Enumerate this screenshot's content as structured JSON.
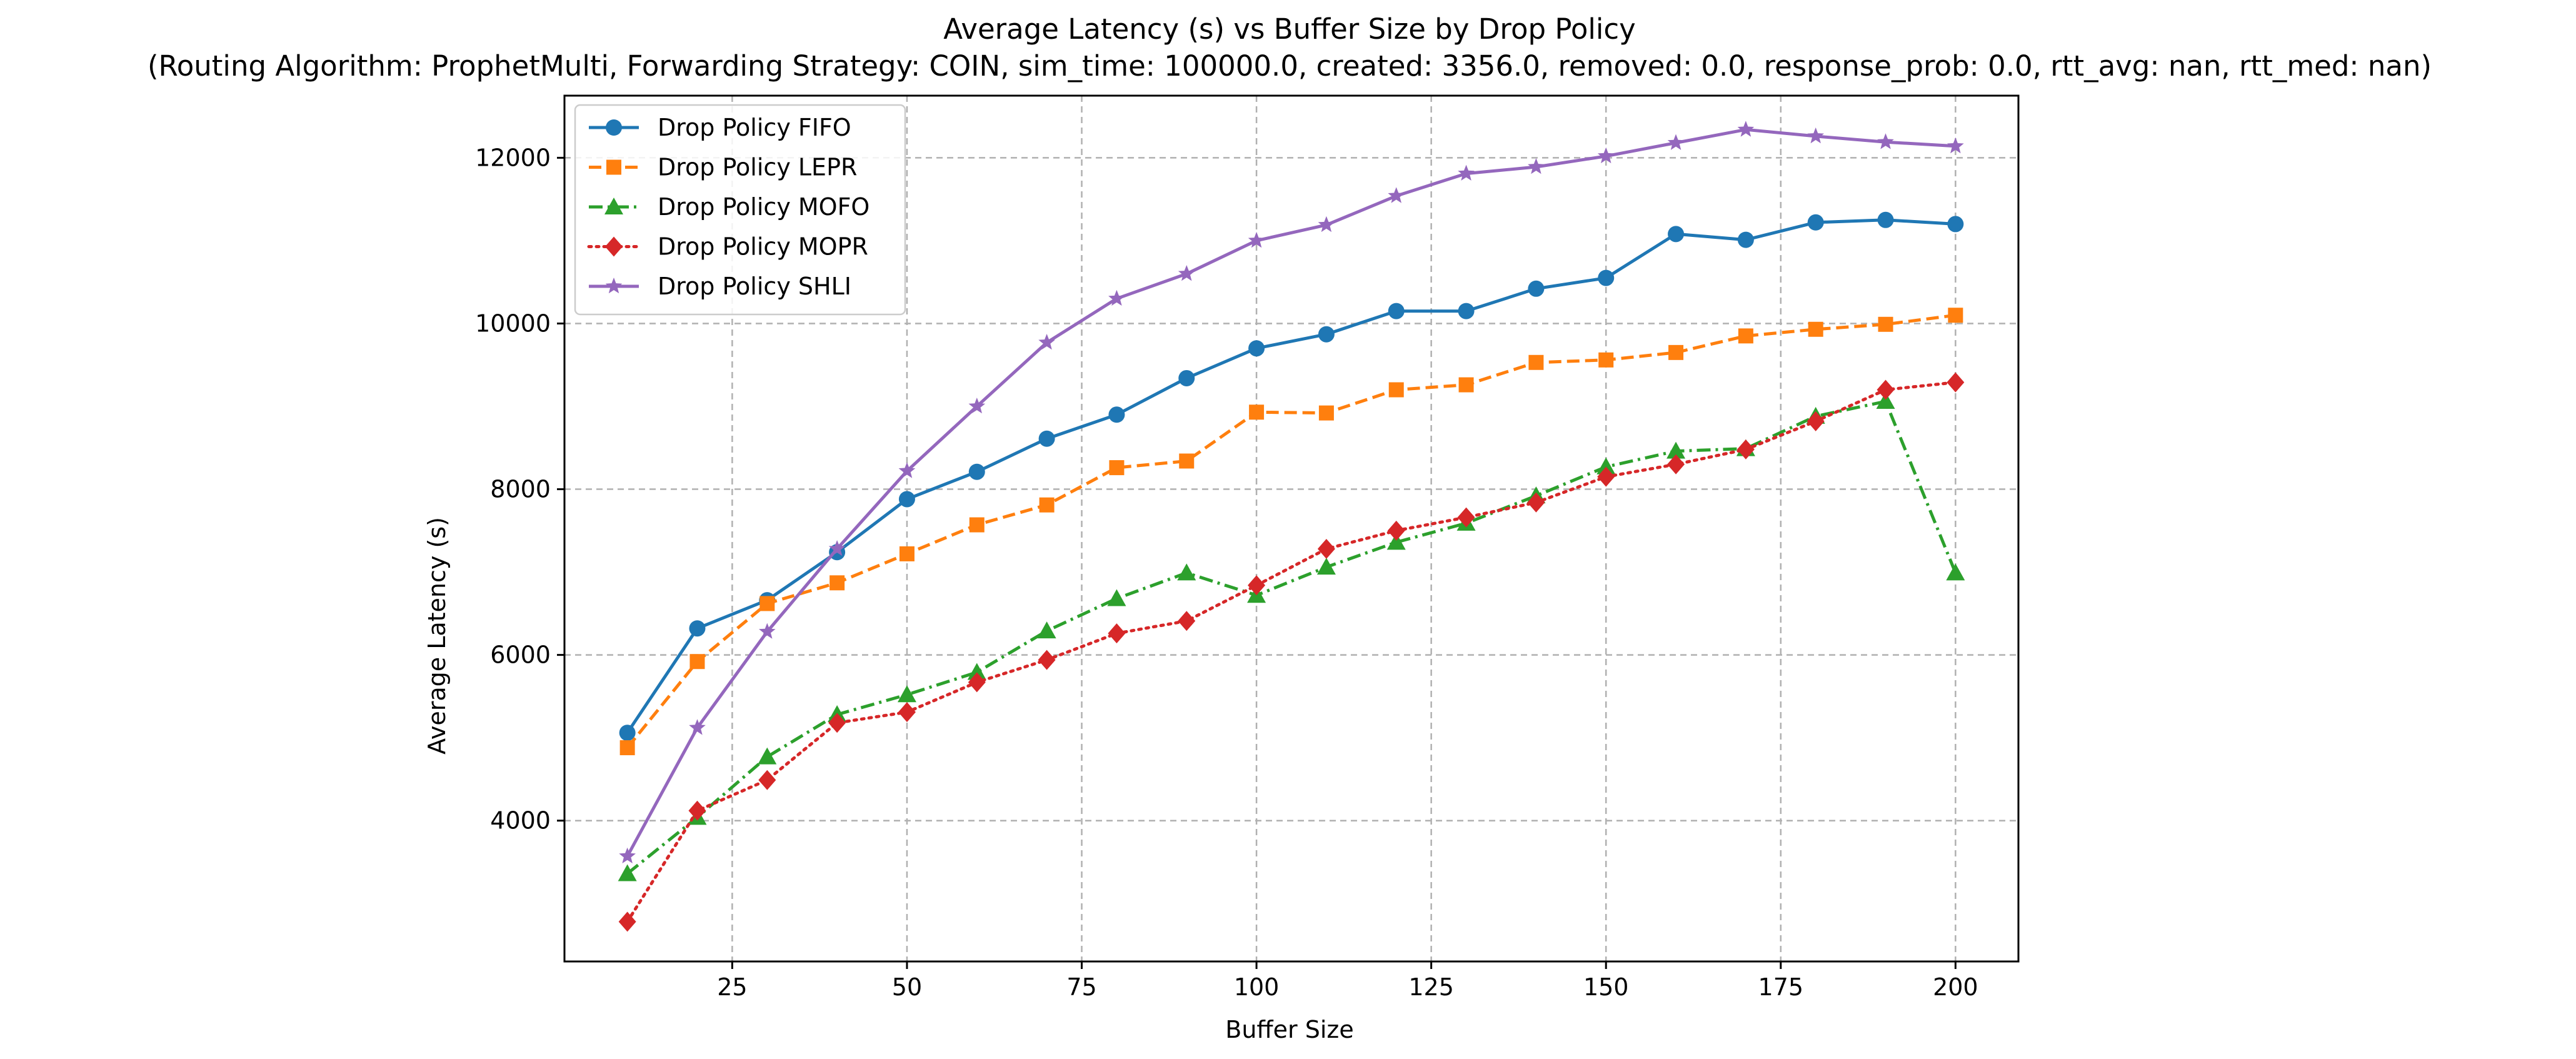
{
  "chart_data": {
    "type": "line",
    "title": "Average Latency (s) vs Buffer Size by Drop Policy",
    "subtitle": "(Routing Algorithm: ProphetMulti, Forwarding Strategy: COIN, sim_time: 100000.0, created: 3356.0, removed: 0.0, response_prob: 0.0, rtt_avg: nan, rtt_med: nan)",
    "xlabel": "Buffer Size",
    "ylabel": "Average Latency (s)",
    "xlim": [
      1,
      209
    ],
    "ylim": [
      2300,
      12750
    ],
    "xticks": [
      25,
      50,
      75,
      100,
      125,
      150,
      175,
      200
    ],
    "yticks": [
      4000,
      6000,
      8000,
      10000,
      12000
    ],
    "grid": true,
    "legend_position": "top-left",
    "x": [
      10,
      20,
      30,
      40,
      50,
      60,
      70,
      80,
      90,
      100,
      110,
      120,
      130,
      140,
      150,
      160,
      170,
      180,
      190,
      200
    ],
    "series": [
      {
        "name": "Drop Policy FIFO",
        "color": "#1f77b4",
        "line_style": "solid",
        "marker": "circle",
        "values": [
          5060,
          6320,
          6660,
          7240,
          7880,
          8210,
          8610,
          8900,
          9340,
          9700,
          9870,
          10150,
          10150,
          10420,
          10550,
          11080,
          11010,
          11220,
          11250,
          11200
        ]
      },
      {
        "name": "Drop Policy LEPR",
        "color": "#ff7f0e",
        "line_style": "dashed",
        "marker": "square",
        "values": [
          4880,
          5920,
          6620,
          6870,
          7220,
          7570,
          7810,
          8260,
          8340,
          8930,
          8920,
          9200,
          9260,
          9530,
          9560,
          9650,
          9850,
          9930,
          9990,
          10100
        ]
      },
      {
        "name": "Drop Policy MOFO",
        "color": "#2ca02c",
        "line_style": "dashdot",
        "marker": "triangle",
        "values": [
          3360,
          4040,
          4770,
          5280,
          5520,
          5790,
          6290,
          6680,
          6990,
          6720,
          7060,
          7360,
          7590,
          7920,
          8270,
          8460,
          8490,
          8880,
          9060,
          6990
        ]
      },
      {
        "name": "Drop Policy MOPR",
        "color": "#d62728",
        "line_style": "dotted",
        "marker": "diamond",
        "values": [
          2780,
          4120,
          4490,
          5180,
          5310,
          5670,
          5940,
          6260,
          6410,
          6840,
          7280,
          7500,
          7660,
          7840,
          8150,
          8300,
          8480,
          8820,
          9200,
          9290
        ]
      },
      {
        "name": "Drop Policy SHLI",
        "color": "#9467bd",
        "line_style": "solid",
        "marker": "star",
        "values": [
          3570,
          5120,
          6280,
          7280,
          8220,
          9000,
          9770,
          10300,
          10600,
          11000,
          11190,
          11540,
          11810,
          11890,
          12020,
          12180,
          12340,
          12260,
          12190,
          12140
        ]
      }
    ]
  }
}
